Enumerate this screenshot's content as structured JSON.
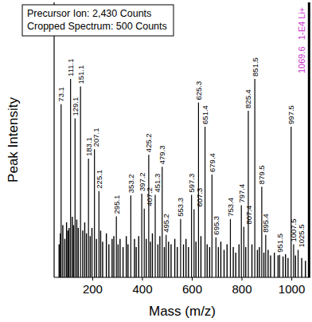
{
  "chart_data": {
    "type": "bar",
    "x_label": "Mass (m/z)",
    "y_label": "Peak Intensity",
    "annotations": [
      "Precursor Ion: 2,430 Counts",
      "Cropped Spectrum: 500 Counts"
    ],
    "xlim": [
      45,
      1075
    ],
    "xticks": [
      200,
      400,
      600,
      800,
      1000
    ],
    "ylim": [
      0,
      500
    ],
    "tick_labels": "x",
    "series": [
      {
        "x": [
          73.1,
          111.1,
          129.1,
          151.1,
          183.1,
          207.1,
          225.1,
          295.1,
          353.2,
          397.2,
          407.2,
          425.2,
          451.3,
          479.3,
          495.2,
          553.3,
          597.3,
          607.3,
          625.3,
          651.4,
          679.4,
          695.3,
          753.4,
          797.4,
          807.4,
          825.4,
          851.5,
          879.5,
          895.4,
          951.5,
          997.5,
          1007.5,
          1025.5
        ],
        "values": [
          315,
          361,
          289,
          347,
          216,
          233,
          157,
          111,
          149,
          152,
          125,
          223,
          150,
          201,
          77,
          106,
          150,
          124,
          318,
          274,
          187,
          73,
          106,
          131,
          92,
          303,
          361,
          165,
          77,
          41,
          274,
          60,
          50
        ],
        "color": "#000000",
        "data_labels": true
      },
      {
        "x": [
          65,
          70,
          80,
          88,
          95,
          100,
          105,
          118,
          123,
          136,
          142,
          160,
          168,
          175,
          190,
          197,
          215,
          232,
          240,
          255,
          265,
          278,
          285,
          302,
          310,
          322,
          335,
          342,
          368,
          375,
          385,
          415,
          432,
          440,
          462,
          470,
          488,
          505,
          515,
          530,
          540,
          565,
          575,
          585,
          615,
          635,
          660,
          670,
          705,
          715,
          728,
          740,
          765,
          775,
          788,
          815,
          840,
          862,
          870,
          888,
          905,
          915,
          930,
          945,
          965,
          975,
          985,
          1015,
          1040,
          1055
        ],
        "values": [
          60,
          80,
          95,
          70,
          100,
          85,
          90,
          110,
          95,
          105,
          90,
          85,
          100,
          80,
          75,
          90,
          70,
          85,
          65,
          80,
          60,
          70,
          75,
          60,
          70,
          55,
          75,
          60,
          70,
          55,
          75,
          70,
          65,
          80,
          60,
          75,
          55,
          65,
          60,
          70,
          55,
          60,
          70,
          55,
          65,
          75,
          60,
          55,
          55,
          65,
          50,
          60,
          55,
          45,
          60,
          55,
          60,
          50,
          55,
          45,
          50,
          40,
          45,
          40,
          38,
          42,
          35,
          40,
          35,
          30
        ],
        "color": "#000000"
      }
    ],
    "precursor": {
      "x": 1069.6,
      "value": 2430,
      "label": "1-E4 Li+",
      "color": "#cc33cc"
    }
  }
}
